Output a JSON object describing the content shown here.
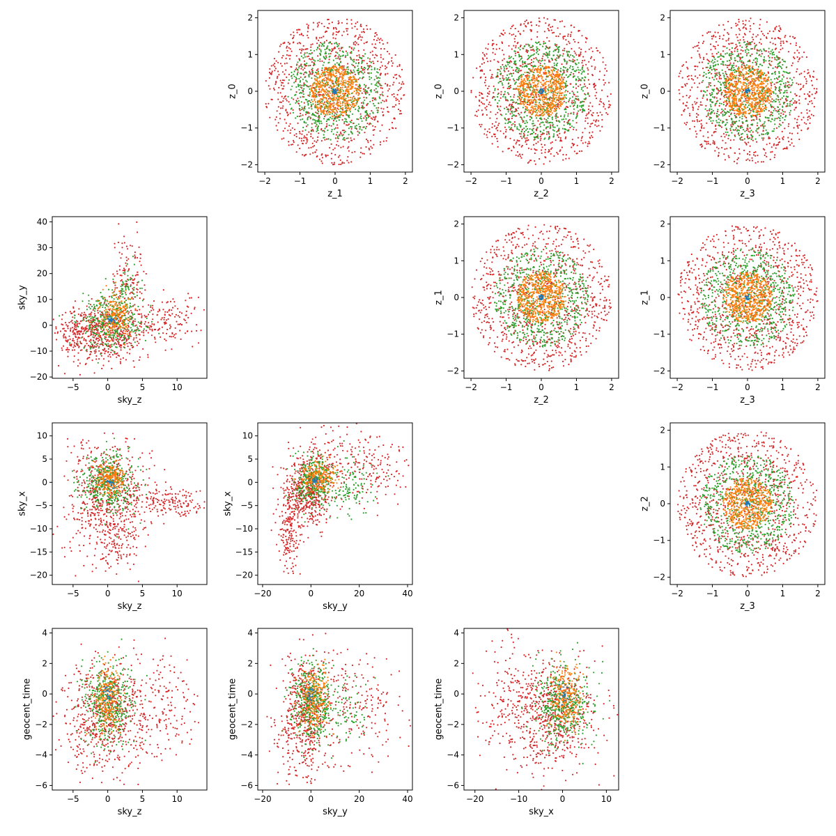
{
  "figure": {
    "background": "#ffffff"
  },
  "series_colors": [
    "#d62728",
    "#2ca02c",
    "#ff7f0e",
    "#1f77b4"
  ],
  "chart_data": [
    {
      "type": "scatter",
      "row": 0,
      "col": 1,
      "xlabel": "z_1",
      "ylabel": "z_0",
      "xlim": [
        -2.2,
        2.2
      ],
      "ylim": [
        -2.2,
        2.2
      ],
      "xticks": [
        -2,
        -1,
        0,
        1,
        2
      ],
      "yticks": [
        -2,
        -1,
        0,
        1,
        2
      ],
      "cloud": {
        "kind": "shells",
        "cx": 0,
        "cy": 0,
        "radii": [
          2.0,
          1.35,
          0.7,
          0.07
        ],
        "counts": [
          900,
          650,
          550,
          25
        ]
      }
    },
    {
      "type": "scatter",
      "row": 0,
      "col": 2,
      "xlabel": "z_2",
      "ylabel": "z_0",
      "xlim": [
        -2.2,
        2.2
      ],
      "ylim": [
        -2.2,
        2.2
      ],
      "xticks": [
        -2,
        -1,
        0,
        1,
        2
      ],
      "yticks": [
        -2,
        -1,
        0,
        1,
        2
      ],
      "cloud": {
        "kind": "shells",
        "cx": 0,
        "cy": 0,
        "radii": [
          2.0,
          1.35,
          0.7,
          0.07
        ],
        "counts": [
          900,
          650,
          550,
          25
        ]
      }
    },
    {
      "type": "scatter",
      "row": 0,
      "col": 3,
      "xlabel": "z_3",
      "ylabel": "z_0",
      "xlim": [
        -2.2,
        2.2
      ],
      "ylim": [
        -2.2,
        2.2
      ],
      "xticks": [
        -2,
        -1,
        0,
        1,
        2
      ],
      "yticks": [
        -2,
        -1,
        0,
        1,
        2
      ],
      "cloud": {
        "kind": "shells",
        "cx": 0,
        "cy": 0,
        "radii": [
          2.0,
          1.35,
          0.7,
          0.07
        ],
        "counts": [
          900,
          650,
          550,
          25
        ]
      }
    },
    {
      "type": "scatter",
      "row": 1,
      "col": 0,
      "xlabel": "sky_z",
      "ylabel": "sky_y",
      "xlim": [
        -8,
        14.3
      ],
      "ylim": [
        -20.5,
        42
      ],
      "xticks": [
        -5,
        0,
        5,
        10
      ],
      "yticks": [
        -20,
        -10,
        0,
        10,
        20,
        30,
        40
      ],
      "cloud": {
        "kind": "blobs",
        "blobs": [
          {
            "c": 0,
            "n": 550,
            "cx": -0.5,
            "cy": -3,
            "sx": 2.8,
            "sy": 5.5
          },
          {
            "c": 0,
            "n": 120,
            "cx": 3,
            "cy": 20,
            "sx": 1.2,
            "sy": 9
          },
          {
            "c": 0,
            "n": 160,
            "cx": 8.5,
            "cy": 2,
            "sx": 2.6,
            "sy": 5
          },
          {
            "c": 0,
            "n": 80,
            "cx": -4.5,
            "cy": -2,
            "sx": 1.5,
            "sy": 5
          },
          {
            "c": 1,
            "n": 350,
            "cx": 0.5,
            "cy": 1,
            "sx": 2.2,
            "sy": 5.5
          },
          {
            "c": 1,
            "n": 60,
            "cx": 2.5,
            "cy": 15,
            "sx": 1,
            "sy": 5
          },
          {
            "c": 2,
            "n": 200,
            "cx": 1,
            "cy": 4,
            "sx": 1.2,
            "sy": 4
          },
          {
            "c": 3,
            "n": 20,
            "cx": 0.5,
            "cy": 2,
            "sx": 0.3,
            "sy": 0.8
          }
        ]
      }
    },
    {
      "type": "scatter",
      "row": 1,
      "col": 2,
      "xlabel": "z_2",
      "ylabel": "z_1",
      "xlim": [
        -2.2,
        2.2
      ],
      "ylim": [
        -2.2,
        2.2
      ],
      "xticks": [
        -2,
        -1,
        0,
        1,
        2
      ],
      "yticks": [
        -2,
        -1,
        0,
        1,
        2
      ],
      "cloud": {
        "kind": "shells",
        "cx": 0,
        "cy": 0,
        "radii": [
          2.0,
          1.35,
          0.7,
          0.07
        ],
        "counts": [
          900,
          650,
          550,
          25
        ]
      }
    },
    {
      "type": "scatter",
      "row": 1,
      "col": 3,
      "xlabel": "z_3",
      "ylabel": "z_1",
      "xlim": [
        -2.2,
        2.2
      ],
      "ylim": [
        -2.2,
        2.2
      ],
      "xticks": [
        -2,
        -1,
        0,
        1,
        2
      ],
      "yticks": [
        -2,
        -1,
        0,
        1,
        2
      ],
      "cloud": {
        "kind": "shells",
        "cx": 0,
        "cy": 0,
        "radii": [
          2.0,
          1.35,
          0.7,
          0.07
        ],
        "counts": [
          900,
          650,
          550,
          25
        ]
      }
    },
    {
      "type": "scatter",
      "row": 2,
      "col": 0,
      "xlabel": "sky_z",
      "ylabel": "sky_x",
      "xlim": [
        -8,
        14.3
      ],
      "ylim": [
        -22,
        12.8
      ],
      "xticks": [
        -5,
        0,
        5,
        10
      ],
      "yticks": [
        -20,
        -15,
        -10,
        -5,
        0,
        5,
        10
      ],
      "cloud": {
        "kind": "blobs",
        "blobs": [
          {
            "c": 0,
            "n": 600,
            "cx": 0,
            "cy": -3,
            "sx": 2.8,
            "sy": 5.5
          },
          {
            "c": 0,
            "n": 160,
            "cx": 9,
            "cy": -4.5,
            "sx": 2.5,
            "sy": 2
          },
          {
            "c": 0,
            "n": 100,
            "cx": 0.5,
            "cy": -14,
            "sx": 2,
            "sy": 3
          },
          {
            "c": 1,
            "n": 400,
            "cx": 0,
            "cy": -0.5,
            "sx": 2,
            "sy": 3.2
          },
          {
            "c": 2,
            "n": 200,
            "cx": 0.5,
            "cy": 0.5,
            "sx": 1,
            "sy": 1.8
          },
          {
            "c": 3,
            "n": 20,
            "cx": 0.5,
            "cy": 0,
            "sx": 0.3,
            "sy": 0.5
          }
        ]
      }
    },
    {
      "type": "scatter",
      "row": 2,
      "col": 1,
      "xlabel": "sky_y",
      "ylabel": "sky_x",
      "xlim": [
        -22,
        42
      ],
      "ylim": [
        -22,
        12.8
      ],
      "xticks": [
        -20,
        0,
        20,
        40
      ],
      "yticks": [
        -20,
        -15,
        -10,
        -5,
        0,
        5,
        10
      ],
      "cloud": {
        "kind": "blobs",
        "blobs": [
          {
            "c": 0,
            "n": 500,
            "cx": -2,
            "cy": -2.5,
            "sx": 5,
            "sy": 3.8
          },
          {
            "c": 0,
            "n": 160,
            "cx": -9,
            "cy": -11,
            "sx": 2.5,
            "sy": 4.5
          },
          {
            "c": 0,
            "n": 160,
            "cx": 25,
            "cy": 3,
            "sx": 8,
            "sy": 4
          },
          {
            "c": 0,
            "n": 80,
            "cx": 8,
            "cy": 6,
            "sx": 6,
            "sy": 3
          },
          {
            "c": 1,
            "n": 300,
            "cx": 1,
            "cy": 0,
            "sx": 4,
            "sy": 2.8
          },
          {
            "c": 1,
            "n": 120,
            "cx": 15,
            "cy": -1,
            "sx": 6,
            "sy": 3
          },
          {
            "c": 2,
            "n": 200,
            "cx": 3,
            "cy": 1,
            "sx": 3.5,
            "sy": 1.8
          },
          {
            "c": 3,
            "n": 20,
            "cx": 2,
            "cy": 0.5,
            "sx": 0.8,
            "sy": 0.4
          }
        ]
      }
    },
    {
      "type": "scatter",
      "row": 2,
      "col": 3,
      "xlabel": "z_3",
      "ylabel": "z_2",
      "xlim": [
        -2.2,
        2.2
      ],
      "ylim": [
        -2.2,
        2.2
      ],
      "xticks": [
        -2,
        -1,
        0,
        1,
        2
      ],
      "yticks": [
        -2,
        -1,
        0,
        1,
        2
      ],
      "cloud": {
        "kind": "shells",
        "cx": 0,
        "cy": 0,
        "radii": [
          2.0,
          1.35,
          0.7,
          0.07
        ],
        "counts": [
          900,
          650,
          550,
          25
        ]
      }
    },
    {
      "type": "scatter",
      "row": 3,
      "col": 0,
      "xlabel": "sky_z",
      "ylabel": "geocent_time",
      "xlim": [
        -8,
        14.3
      ],
      "ylim": [
        -6.3,
        4.3
      ],
      "xticks": [
        -5,
        0,
        5,
        10
      ],
      "yticks": [
        -6,
        -4,
        -2,
        0,
        2,
        4
      ],
      "cloud": {
        "kind": "blobs",
        "blobs": [
          {
            "c": 0,
            "n": 650,
            "cx": 0,
            "cy": -1.5,
            "sx": 3.5,
            "sy": 1.9
          },
          {
            "c": 0,
            "n": 120,
            "cx": 9,
            "cy": -0.5,
            "sx": 2.5,
            "sy": 1.5
          },
          {
            "c": 1,
            "n": 400,
            "cx": 0,
            "cy": -0.5,
            "sx": 1.8,
            "sy": 1.3
          },
          {
            "c": 2,
            "n": 220,
            "cx": 0,
            "cy": -0.3,
            "sx": 0.9,
            "sy": 1.1
          },
          {
            "c": 3,
            "n": 20,
            "cx": 0,
            "cy": 0,
            "sx": 0.3,
            "sy": 0.3
          }
        ]
      }
    },
    {
      "type": "scatter",
      "row": 3,
      "col": 1,
      "xlabel": "sky_y",
      "ylabel": "geocent_time",
      "xlim": [
        -22,
        42
      ],
      "ylim": [
        -6.3,
        4.3
      ],
      "xticks": [
        -20,
        0,
        20,
        40
      ],
      "yticks": [
        -6,
        -4,
        -2,
        0,
        2,
        4
      ],
      "cloud": {
        "kind": "blobs",
        "blobs": [
          {
            "c": 0,
            "n": 550,
            "cx": -3,
            "cy": -1.5,
            "sx": 5,
            "sy": 1.9
          },
          {
            "c": 0,
            "n": 180,
            "cx": 20,
            "cy": -1,
            "sx": 9,
            "sy": 1.8
          },
          {
            "c": 1,
            "n": 380,
            "cx": 0,
            "cy": -0.5,
            "sx": 4,
            "sy": 1.3
          },
          {
            "c": 1,
            "n": 80,
            "cx": 14,
            "cy": -1,
            "sx": 5,
            "sy": 1.2
          },
          {
            "c": 2,
            "n": 220,
            "cx": 1,
            "cy": -0.3,
            "sx": 3,
            "sy": 1.1
          },
          {
            "c": 3,
            "n": 20,
            "cx": 0,
            "cy": 0,
            "sx": 0.8,
            "sy": 0.3
          }
        ]
      }
    },
    {
      "type": "scatter",
      "row": 3,
      "col": 2,
      "xlabel": "sky_x",
      "ylabel": "geocent_time",
      "xlim": [
        -22.5,
        12.8
      ],
      "ylim": [
        -6.3,
        4.3
      ],
      "xticks": [
        -20,
        -10,
        0,
        10
      ],
      "yticks": [
        -6,
        -4,
        -2,
        0,
        2,
        4
      ],
      "cloud": {
        "kind": "blobs",
        "blobs": [
          {
            "c": 0,
            "n": 600,
            "cx": -3,
            "cy": -1.5,
            "sx": 5,
            "sy": 1.9
          },
          {
            "c": 0,
            "n": 150,
            "cx": -12,
            "cy": -0.5,
            "sx": 4,
            "sy": 1.8
          },
          {
            "c": 1,
            "n": 400,
            "cx": 0,
            "cy": -0.8,
            "sx": 3.2,
            "sy": 1.3
          },
          {
            "c": 2,
            "n": 220,
            "cx": 1,
            "cy": -0.3,
            "sx": 1.8,
            "sy": 1.1
          },
          {
            "c": 3,
            "n": 20,
            "cx": 0.5,
            "cy": 0,
            "sx": 0.4,
            "sy": 0.3
          }
        ]
      }
    }
  ]
}
